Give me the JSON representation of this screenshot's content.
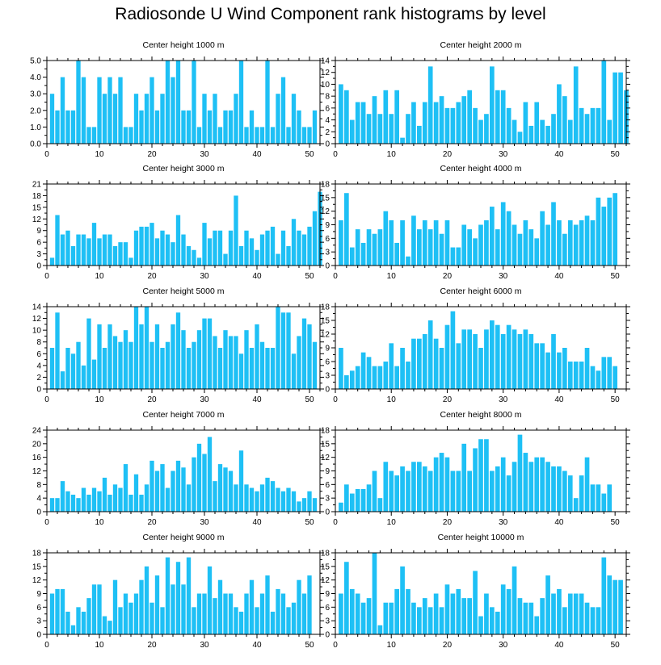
{
  "title": "Radiosonde U Wind Component rank histograms by level",
  "colors": {
    "bar": "#1EC0F5",
    "bar_edge": "#ffffff",
    "axis": "#000000"
  },
  "chart_data": [
    {
      "type": "bar",
      "title": "Center height 1000 m",
      "xlim": [
        0,
        52
      ],
      "ylim": [
        0,
        5
      ],
      "xticks": [
        0,
        10,
        20,
        30,
        40,
        50
      ],
      "yticks": [
        0.0,
        1.0,
        2.0,
        3.0,
        4.0,
        5.0
      ],
      "ytick_labels": [
        "0.0",
        "1.0",
        "2.0",
        "3.0",
        "4.0",
        "5.0"
      ],
      "values": [
        3,
        2,
        4,
        2,
        2,
        5,
        4,
        1,
        1,
        4,
        3,
        4,
        3,
        4,
        1,
        1,
        3,
        2,
        3,
        4,
        2,
        3,
        5,
        4,
        5,
        2,
        2,
        5,
        1,
        3,
        2,
        3,
        1,
        2,
        2,
        3,
        5,
        1,
        2,
        1,
        1,
        5,
        1,
        3,
        4,
        1,
        3,
        2,
        1,
        1,
        2
      ]
    },
    {
      "type": "bar",
      "title": "Center height 2000 m",
      "xlim": [
        0,
        52
      ],
      "ylim": [
        0,
        14
      ],
      "xticks": [
        0,
        10,
        20,
        30,
        40,
        50
      ],
      "yticks": [
        0,
        2,
        4,
        6,
        8,
        10,
        12,
        14
      ],
      "ytick_labels": [
        "0",
        "2",
        "4",
        "6",
        "8",
        "10",
        "12",
        "14"
      ],
      "values": [
        10,
        9,
        4,
        7,
        7,
        5,
        8,
        5,
        9,
        5,
        9,
        1,
        5,
        7,
        3,
        7,
        13,
        7,
        8,
        6,
        6,
        7,
        8,
        9,
        6,
        4,
        5,
        13,
        9,
        9,
        6,
        4,
        2,
        7,
        3,
        7,
        4,
        3,
        5,
        10,
        8,
        4,
        13,
        6,
        5,
        6,
        6,
        14,
        4,
        12,
        12,
        9
      ]
    },
    {
      "type": "bar",
      "title": "Center height 3000 m",
      "xlim": [
        0,
        52
      ],
      "ylim": [
        0,
        21
      ],
      "xticks": [
        0,
        10,
        20,
        30,
        40,
        50
      ],
      "yticks": [
        0,
        3,
        6,
        9,
        12,
        15,
        18,
        21
      ],
      "ytick_labels": [
        "0",
        "3",
        "6",
        "9",
        "12",
        "15",
        "18",
        "21"
      ],
      "values": [
        2,
        13,
        8,
        9,
        5,
        8,
        8,
        7,
        11,
        7,
        8,
        8,
        5,
        6,
        6,
        2,
        9,
        10,
        10,
        11,
        7,
        9,
        8,
        6,
        13,
        8,
        5,
        4,
        2,
        11,
        7,
        9,
        9,
        3,
        9,
        18,
        5,
        9,
        7,
        4,
        8,
        9,
        10,
        3,
        9,
        5,
        12,
        9,
        8,
        10,
        14,
        19
      ]
    },
    {
      "type": "bar",
      "title": "Center height 4000 m",
      "xlim": [
        0,
        52
      ],
      "ylim": [
        0,
        18
      ],
      "xticks": [
        0,
        10,
        20,
        30,
        40,
        50
      ],
      "yticks": [
        0,
        3,
        6,
        9,
        12,
        15,
        18
      ],
      "ytick_labels": [
        "0",
        "3",
        "6",
        "9",
        "12",
        "15",
        "18"
      ],
      "values": [
        10,
        16,
        4,
        8,
        5,
        8,
        7,
        8,
        12,
        10,
        5,
        10,
        2,
        11,
        8,
        10,
        8,
        10,
        7,
        10,
        4,
        4,
        9,
        8,
        6,
        9,
        10,
        13,
        8,
        14,
        12,
        9,
        7,
        10,
        8,
        6,
        12,
        9,
        14,
        10,
        7,
        10,
        9,
        10,
        11,
        10,
        15,
        13,
        15,
        16
      ]
    },
    {
      "type": "bar",
      "title": "Center height 5000 m",
      "xlim": [
        0,
        52
      ],
      "ylim": [
        0,
        14
      ],
      "xticks": [
        0,
        10,
        20,
        30,
        40,
        50
      ],
      "yticks": [
        0,
        2,
        4,
        6,
        8,
        10,
        12,
        14
      ],
      "ytick_labels": [
        "0",
        "2",
        "4",
        "6",
        "8",
        "10",
        "12",
        "14"
      ],
      "values": [
        7,
        13,
        3,
        7,
        6,
        8,
        4,
        12,
        5,
        11,
        7,
        11,
        9,
        8,
        10,
        8,
        14,
        11,
        14,
        8,
        11,
        7,
        8,
        11,
        13,
        10,
        7,
        8,
        10,
        12,
        12,
        9,
        7,
        10,
        9,
        9,
        6,
        10,
        7,
        11,
        8,
        7,
        7,
        14,
        13,
        13,
        6,
        9,
        12,
        11,
        8
      ]
    },
    {
      "type": "bar",
      "title": "Center height 6000 m",
      "xlim": [
        0,
        52
      ],
      "ylim": [
        0,
        18
      ],
      "xticks": [
        0,
        10,
        20,
        30,
        40,
        50
      ],
      "yticks": [
        0,
        3,
        6,
        9,
        12,
        15,
        18
      ],
      "ytick_labels": [
        "0",
        "3",
        "6",
        "9",
        "12",
        "15",
        "18"
      ],
      "values": [
        9,
        3,
        4,
        5,
        8,
        7,
        5,
        5,
        6,
        10,
        5,
        9,
        6,
        11,
        11,
        12,
        15,
        11,
        9,
        14,
        17,
        10,
        13,
        13,
        12,
        9,
        13,
        15,
        14,
        12,
        14,
        13,
        12,
        13,
        12,
        10,
        10,
        8,
        12,
        8,
        9,
        6,
        6,
        6,
        9,
        5,
        4,
        7,
        7,
        5
      ]
    },
    {
      "type": "bar",
      "title": "Center height 7000 m",
      "xlim": [
        0,
        52
      ],
      "ylim": [
        0,
        24
      ],
      "xticks": [
        0,
        10,
        20,
        30,
        40,
        50
      ],
      "yticks": [
        0,
        4,
        8,
        12,
        16,
        20,
        24
      ],
      "ytick_labels": [
        "0",
        "4",
        "8",
        "12",
        "16",
        "20",
        "24"
      ],
      "values": [
        4,
        4,
        9,
        6,
        5,
        4,
        7,
        5,
        7,
        6,
        10,
        5,
        8,
        7,
        14,
        5,
        11,
        5,
        8,
        15,
        12,
        14,
        7,
        12,
        15,
        13,
        8,
        16,
        20,
        17,
        22,
        9,
        14,
        13,
        12,
        8,
        18,
        8,
        7,
        6,
        8,
        10,
        9,
        7,
        6,
        7,
        6,
        3,
        4,
        6,
        4
      ]
    },
    {
      "type": "bar",
      "title": "Center height 8000 m",
      "xlim": [
        0,
        52
      ],
      "ylim": [
        0,
        18
      ],
      "xticks": [
        0,
        10,
        20,
        30,
        40,
        50
      ],
      "yticks": [
        0,
        3,
        6,
        9,
        12,
        15,
        18
      ],
      "ytick_labels": [
        "0",
        "3",
        "6",
        "9",
        "12",
        "15",
        "18"
      ],
      "values": [
        2,
        6,
        4,
        5,
        5,
        6,
        9,
        3,
        11,
        9,
        8,
        10,
        9,
        11,
        11,
        10,
        9,
        12,
        13,
        12,
        9,
        9,
        15,
        9,
        14,
        16,
        16,
        9,
        10,
        12,
        8,
        11,
        17,
        13,
        11,
        12,
        12,
        11,
        10,
        10,
        9,
        8,
        3,
        8,
        12,
        6,
        6,
        4,
        6
      ]
    },
    {
      "type": "bar",
      "title": "Center height 9000 m",
      "xlim": [
        0,
        52
      ],
      "ylim": [
        0,
        18
      ],
      "xticks": [
        0,
        10,
        20,
        30,
        40,
        50
      ],
      "yticks": [
        0,
        3,
        6,
        9,
        12,
        15,
        18
      ],
      "ytick_labels": [
        "0",
        "3",
        "6",
        "9",
        "12",
        "15",
        "18"
      ],
      "values": [
        9,
        10,
        10,
        5,
        2,
        6,
        5,
        8,
        11,
        11,
        4,
        3,
        12,
        6,
        9,
        7,
        9,
        12,
        15,
        7,
        13,
        6,
        17,
        11,
        16,
        11,
        17,
        6,
        9,
        9,
        15,
        8,
        12,
        9,
        9,
        6,
        5,
        9,
        12,
        6,
        9,
        13,
        5,
        10,
        9,
        6,
        7,
        12,
        9,
        13
      ]
    },
    {
      "type": "bar",
      "title": "Center height 10000 m",
      "xlim": [
        0,
        52
      ],
      "ylim": [
        0,
        18
      ],
      "xticks": [
        0,
        10,
        20,
        30,
        40,
        50
      ],
      "yticks": [
        0,
        3,
        6,
        9,
        12,
        15,
        18
      ],
      "ytick_labels": [
        "0",
        "3",
        "6",
        "9",
        "12",
        "15",
        "18"
      ],
      "values": [
        9,
        16,
        10,
        9,
        7,
        8,
        18,
        2,
        7,
        7,
        10,
        15,
        10,
        7,
        6,
        8,
        6,
        9,
        6,
        11,
        9,
        10,
        8,
        8,
        14,
        4,
        9,
        6,
        5,
        11,
        10,
        15,
        8,
        7,
        7,
        4,
        8,
        13,
        9,
        10,
        6,
        9,
        9,
        9,
        7,
        6,
        6,
        17,
        13,
        12,
        12
      ]
    }
  ]
}
